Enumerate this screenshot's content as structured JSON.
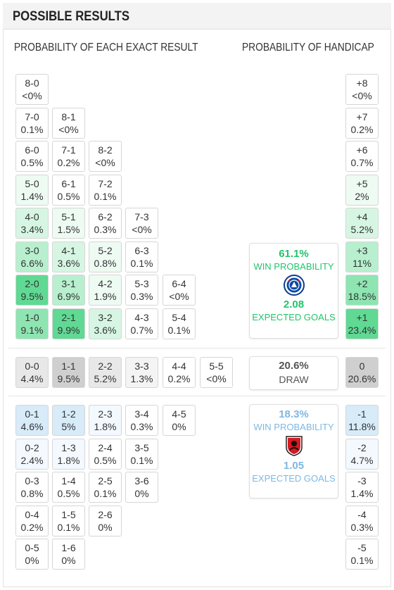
{
  "header": {
    "title": "POSSIBLE RESULTS"
  },
  "columns": {
    "exact": "PROBABILITY OF EACH EXACT RESULT",
    "handicap": "PROBABILITY OF HANDICAP"
  },
  "colors": {
    "green_scale": [
      "#ffffff",
      "#edfbf3",
      "#d6f6e3",
      "#b8efcf",
      "#8ee5b2",
      "#5fd993"
    ],
    "grey_scale": [
      "#ffffff",
      "#f4f4f4",
      "#e8e8e8",
      "#cfcfcf"
    ],
    "blue_scale": [
      "#ffffff",
      "#f3f9fe",
      "#d7ebf9"
    ],
    "home": "#22c46a",
    "away": "#7db8e3",
    "draw": "#555555"
  },
  "home_results": [
    {
      "score": "8-0",
      "prob": "<0%",
      "col": 0,
      "row": 0,
      "shade": 0
    },
    {
      "score": "7-0",
      "prob": "0.1%",
      "col": 0,
      "row": 1,
      "shade": 0
    },
    {
      "score": "8-1",
      "prob": "<0%",
      "col": 1,
      "row": 1,
      "shade": 0
    },
    {
      "score": "6-0",
      "prob": "0.5%",
      "col": 0,
      "row": 2,
      "shade": 0
    },
    {
      "score": "7-1",
      "prob": "0.2%",
      "col": 1,
      "row": 2,
      "shade": 0
    },
    {
      "score": "8-2",
      "prob": "<0%",
      "col": 2,
      "row": 2,
      "shade": 0
    },
    {
      "score": "5-0",
      "prob": "1.4%",
      "col": 0,
      "row": 3,
      "shade": 1
    },
    {
      "score": "6-1",
      "prob": "0.5%",
      "col": 1,
      "row": 3,
      "shade": 0
    },
    {
      "score": "7-2",
      "prob": "0.1%",
      "col": 2,
      "row": 3,
      "shade": 0
    },
    {
      "score": "4-0",
      "prob": "3.4%",
      "col": 0,
      "row": 4,
      "shade": 2
    },
    {
      "score": "5-1",
      "prob": "1.5%",
      "col": 1,
      "row": 4,
      "shade": 1
    },
    {
      "score": "6-2",
      "prob": "0.3%",
      "col": 2,
      "row": 4,
      "shade": 0
    },
    {
      "score": "7-3",
      "prob": "<0%",
      "col": 3,
      "row": 4,
      "shade": 0
    },
    {
      "score": "3-0",
      "prob": "6.6%",
      "col": 0,
      "row": 5,
      "shade": 3
    },
    {
      "score": "4-1",
      "prob": "3.6%",
      "col": 1,
      "row": 5,
      "shade": 2
    },
    {
      "score": "5-2",
      "prob": "0.8%",
      "col": 2,
      "row": 5,
      "shade": 1
    },
    {
      "score": "6-3",
      "prob": "0.1%",
      "col": 3,
      "row": 5,
      "shade": 0
    },
    {
      "score": "2-0",
      "prob": "9.5%",
      "col": 0,
      "row": 6,
      "shade": 5
    },
    {
      "score": "3-1",
      "prob": "6.9%",
      "col": 1,
      "row": 6,
      "shade": 3
    },
    {
      "score": "4-2",
      "prob": "1.9%",
      "col": 2,
      "row": 6,
      "shade": 1
    },
    {
      "score": "5-3",
      "prob": "0.3%",
      "col": 3,
      "row": 6,
      "shade": 0
    },
    {
      "score": "6-4",
      "prob": "<0%",
      "col": 4,
      "row": 6,
      "shade": 0
    },
    {
      "score": "1-0",
      "prob": "9.1%",
      "col": 0,
      "row": 7,
      "shade": 4
    },
    {
      "score": "2-1",
      "prob": "9.9%",
      "col": 1,
      "row": 7,
      "shade": 5
    },
    {
      "score": "3-2",
      "prob": "3.6%",
      "col": 2,
      "row": 7,
      "shade": 2
    },
    {
      "score": "4-3",
      "prob": "0.7%",
      "col": 3,
      "row": 7,
      "shade": 0
    },
    {
      "score": "5-4",
      "prob": "0.1%",
      "col": 4,
      "row": 7,
      "shade": 0
    }
  ],
  "draw_results": [
    {
      "score": "0-0",
      "prob": "4.4%",
      "col": 0,
      "shade": 2
    },
    {
      "score": "1-1",
      "prob": "9.5%",
      "col": 1,
      "shade": 3
    },
    {
      "score": "2-2",
      "prob": "5.2%",
      "col": 2,
      "shade": 2
    },
    {
      "score": "3-3",
      "prob": "1.3%",
      "col": 3,
      "shade": 1
    },
    {
      "score": "4-4",
      "prob": "0.2%",
      "col": 4,
      "shade": 0
    },
    {
      "score": "5-5",
      "prob": "<0%",
      "col": 5,
      "shade": 0
    }
  ],
  "away_results": [
    {
      "score": "0-1",
      "prob": "4.6%",
      "col": 0,
      "row": 0,
      "shade": 2
    },
    {
      "score": "1-2",
      "prob": "5%",
      "col": 1,
      "row": 0,
      "shade": 2
    },
    {
      "score": "2-3",
      "prob": "1.8%",
      "col": 2,
      "row": 0,
      "shade": 1
    },
    {
      "score": "3-4",
      "prob": "0.3%",
      "col": 3,
      "row": 0,
      "shade": 0
    },
    {
      "score": "4-5",
      "prob": "0%",
      "col": 4,
      "row": 0,
      "shade": 0
    },
    {
      "score": "0-2",
      "prob": "2.4%",
      "col": 0,
      "row": 1,
      "shade": 1
    },
    {
      "score": "1-3",
      "prob": "1.8%",
      "col": 1,
      "row": 1,
      "shade": 1
    },
    {
      "score": "2-4",
      "prob": "0.5%",
      "col": 2,
      "row": 1,
      "shade": 0
    },
    {
      "score": "3-5",
      "prob": "0.1%",
      "col": 3,
      "row": 1,
      "shade": 0
    },
    {
      "score": "0-3",
      "prob": "0.8%",
      "col": 0,
      "row": 2,
      "shade": 0
    },
    {
      "score": "1-4",
      "prob": "0.5%",
      "col": 1,
      "row": 2,
      "shade": 0
    },
    {
      "score": "2-5",
      "prob": "0.1%",
      "col": 2,
      "row": 2,
      "shade": 0
    },
    {
      "score": "3-6",
      "prob": "0%",
      "col": 3,
      "row": 2,
      "shade": 0
    },
    {
      "score": "0-4",
      "prob": "0.2%",
      "col": 0,
      "row": 3,
      "shade": 0
    },
    {
      "score": "1-5",
      "prob": "0.1%",
      "col": 1,
      "row": 3,
      "shade": 0
    },
    {
      "score": "2-6",
      "prob": "0%",
      "col": 2,
      "row": 3,
      "shade": 0
    },
    {
      "score": "0-5",
      "prob": "0%",
      "col": 0,
      "row": 4,
      "shade": 0
    },
    {
      "score": "1-6",
      "prob": "0%",
      "col": 1,
      "row": 4,
      "shade": 0
    }
  ],
  "handicap_home": [
    {
      "label": "+8",
      "prob": "<0%",
      "row": 0,
      "shade": 0
    },
    {
      "label": "+7",
      "prob": "0.2%",
      "row": 1,
      "shade": 0
    },
    {
      "label": "+6",
      "prob": "0.7%",
      "row": 2,
      "shade": 0
    },
    {
      "label": "+5",
      "prob": "2%",
      "row": 3,
      "shade": 1
    },
    {
      "label": "+4",
      "prob": "5.2%",
      "row": 4,
      "shade": 2
    },
    {
      "label": "+3",
      "prob": "11%",
      "row": 5,
      "shade": 3
    },
    {
      "label": "+2",
      "prob": "18.5%",
      "row": 6,
      "shade": 4
    },
    {
      "label": "+1",
      "prob": "23.4%",
      "row": 7,
      "shade": 5
    }
  ],
  "handicap_draw": {
    "label": "0",
    "prob": "20.6%",
    "shade": 3
  },
  "handicap_away": [
    {
      "label": "-1",
      "prob": "11.8%",
      "row": 0,
      "shade": 2
    },
    {
      "label": "-2",
      "prob": "4.7%",
      "row": 1,
      "shade": 1
    },
    {
      "label": "-3",
      "prob": "1.4%",
      "row": 2,
      "shade": 0
    },
    {
      "label": "-4",
      "prob": "0.3%",
      "row": 3,
      "shade": 0
    },
    {
      "label": "-5",
      "prob": "0.1%",
      "row": 4,
      "shade": 0
    }
  ],
  "home_summary": {
    "win_pct": "61.1%",
    "win_label": "WIN PROBABILITY",
    "xg": "2.08",
    "xg_label": "EXPECTED GOALS",
    "crest": "chelsea-crest-icon"
  },
  "draw_summary": {
    "pct": "20.6%",
    "label": "DRAW"
  },
  "away_summary": {
    "win_pct": "18.3%",
    "win_label": "WIN PROBABILITY",
    "xg": "1.05",
    "xg_label": "EXPECTED GOALS",
    "crest": "bournemouth-crest-icon"
  }
}
